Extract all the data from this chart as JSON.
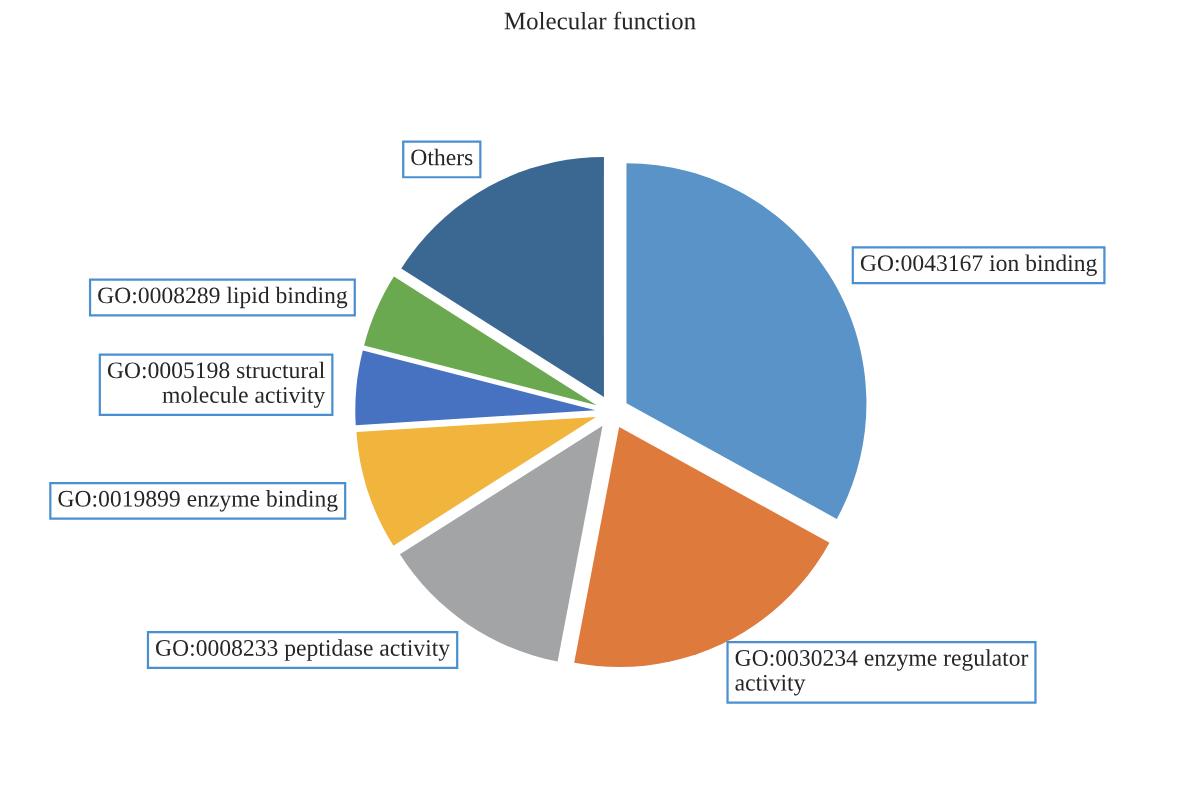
{
  "chart_data": {
    "type": "pie",
    "title": "Molecular function",
    "categories": [
      "GO:0043167 ion binding",
      "GO:0030234 enzyme regulator\nactivity",
      "GO:0008233 peptidase activity",
      "GO:0019899 enzyme binding",
      "GO:0005198 structural\nmolecule activity",
      "GO:0008289 lipid binding",
      "Others"
    ],
    "values": [
      33,
      20,
      13,
      8,
      5,
      5,
      16
    ],
    "colors": [
      "#5a93c8",
      "#de7a3c",
      "#a3a4a6",
      "#f1b43c",
      "#4772c2",
      "#6ba951",
      "#3b6793"
    ]
  }
}
